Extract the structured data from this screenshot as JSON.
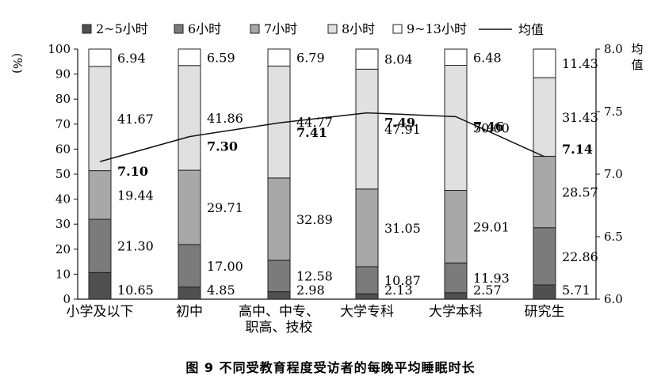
{
  "chart_data": {
    "type": "bar",
    "caption": "图 9    不同受教育程度受访者的每晚平均睡眠时长",
    "ylabel_left": "(%)",
    "ylabel_right": "均值",
    "ylim_left": [
      0,
      100
    ],
    "ylim_right": [
      6.0,
      8.0
    ],
    "yticks_left": [
      0,
      10,
      20,
      30,
      40,
      50,
      60,
      70,
      80,
      90,
      100
    ],
    "yticks_right": [
      "6.0",
      "6.5",
      "7.0",
      "7.5",
      "8.0"
    ],
    "categories": [
      [
        "小学及以下"
      ],
      [
        "初中"
      ],
      [
        "高中、中专、",
        "职高、技校"
      ],
      [
        "大学专科"
      ],
      [
        "大学本科"
      ],
      [
        "研究生"
      ]
    ],
    "series": [
      {
        "name": "2~5小时",
        "color": "#505050",
        "values": [
          10.65,
          4.85,
          2.98,
          2.13,
          2.57,
          5.71
        ]
      },
      {
        "name": "6小时",
        "color": "#7b7b7b",
        "values": [
          21.3,
          17.0,
          12.58,
          10.87,
          11.93,
          22.86
        ]
      },
      {
        "name": "7小时",
        "color": "#a8a8a8",
        "values": [
          19.44,
          29.71,
          32.89,
          31.05,
          29.01,
          28.57
        ]
      },
      {
        "name": "8小时",
        "color": "#e0e0e0",
        "values": [
          41.67,
          41.86,
          44.77,
          47.91,
          50.0,
          31.43
        ]
      },
      {
        "name": "9~13小时",
        "color": "#ffffff",
        "values": [
          6.94,
          6.59,
          6.79,
          8.04,
          6.48,
          11.43
        ]
      }
    ],
    "line": {
      "name": "均值",
      "values": [
        7.1,
        7.3,
        7.41,
        7.49,
        7.46,
        7.14
      ]
    }
  }
}
